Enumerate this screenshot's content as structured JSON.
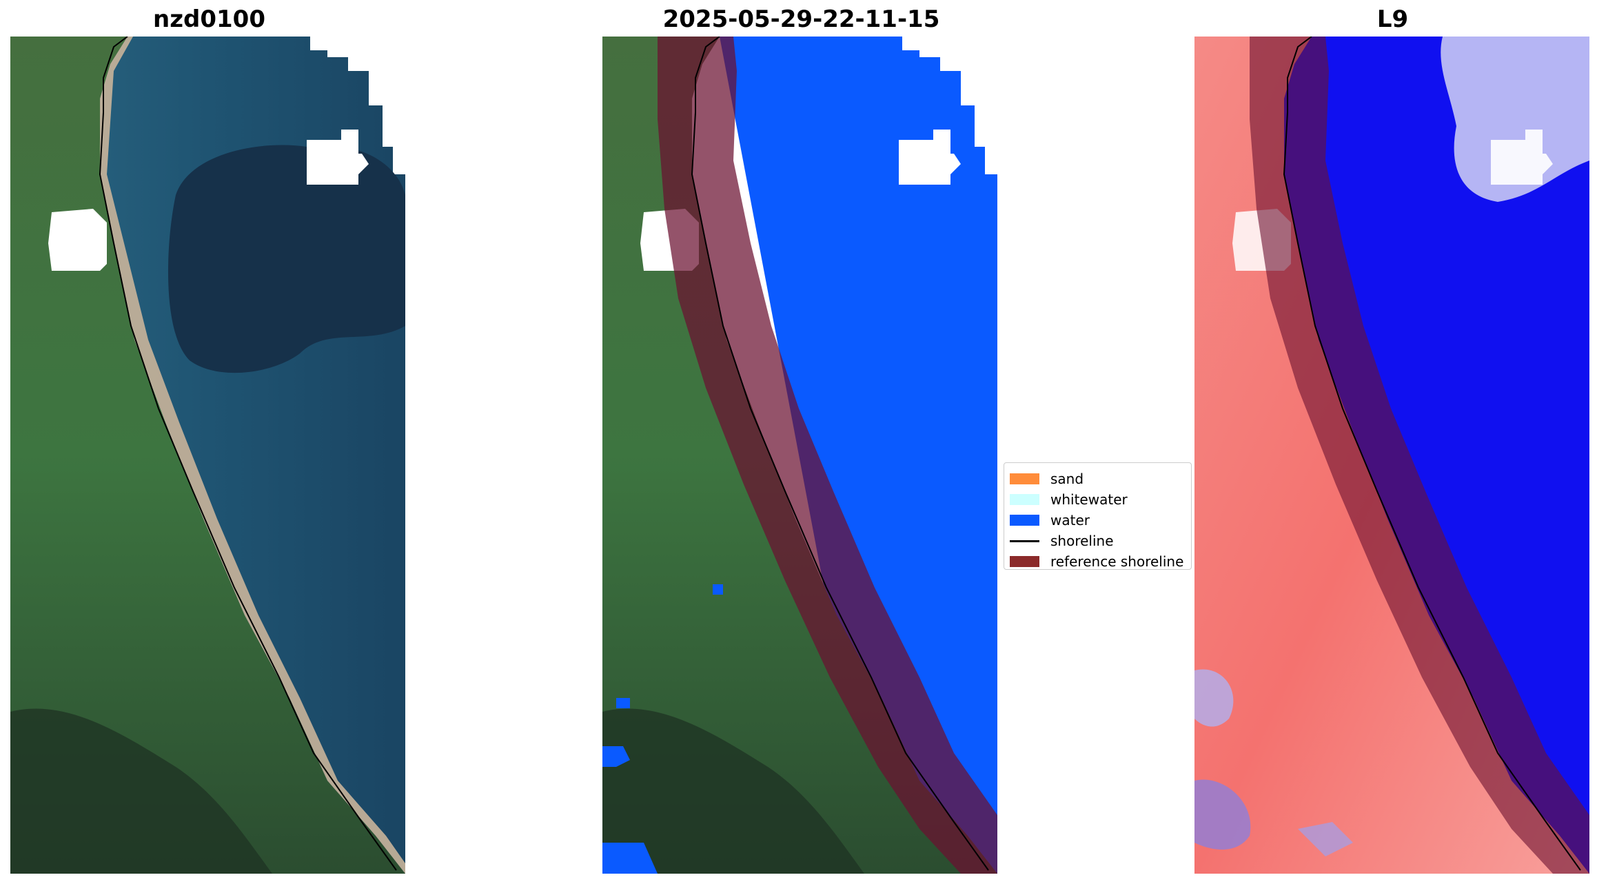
{
  "panels": [
    {
      "title": "nzd0100"
    },
    {
      "title": "2025-05-29-22-11-15"
    },
    {
      "title": "L9"
    }
  ],
  "legend": {
    "items": [
      {
        "label": "sand",
        "color": "#ff8c3a"
      },
      {
        "label": "whitewater",
        "color": "#ccffff"
      },
      {
        "label": "water",
        "color": "#0a5aff"
      },
      {
        "label": "shoreline",
        "color": "#000000"
      },
      {
        "label": "reference shoreline",
        "color": "#8b2a2a"
      }
    ]
  },
  "colors": {
    "ocean": "#1f4f6e",
    "deep_ocean": "#16314a",
    "land": "#3a6d3c",
    "water_class": "#0a5aff",
    "ref_band": "#6b1030",
    "index_land": "#f2726f",
    "index_water": "#1010f0"
  }
}
